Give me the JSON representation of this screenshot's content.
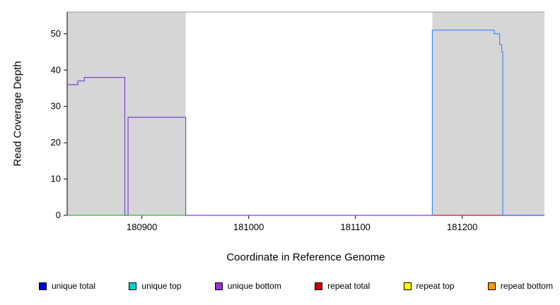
{
  "figure": {
    "xlabel": "Coordinate in Reference Genome",
    "ylabel": "Read Coverage Depth"
  },
  "chart_data": {
    "type": "line",
    "title": "",
    "xlabel": "Coordinate in Reference Genome",
    "ylabel": "Read Coverage Depth",
    "xlim": [
      180830,
      181277
    ],
    "ylim": [
      0,
      56
    ],
    "xticks": [
      180900,
      181000,
      181100,
      181200
    ],
    "yticks": [
      0,
      10,
      20,
      30,
      40,
      50
    ],
    "grid": false,
    "legend_position": "bottom",
    "plot_background": "#ffffff",
    "shaded_region_color": "#d6d6d6",
    "background_regions": [
      {
        "x0": 180830,
        "x1": 180941,
        "color": "#d6d6d6"
      },
      {
        "x0": 181172,
        "x1": 181277,
        "color": "#d6d6d6"
      }
    ],
    "series": [
      {
        "name": "unique bottom",
        "color": "#7a45d8",
        "points": [
          [
            180830,
            36
          ],
          [
            180840,
            36
          ],
          [
            180840,
            37
          ],
          [
            180846,
            37
          ],
          [
            180846,
            38
          ],
          [
            180884,
            38
          ],
          [
            180884,
            0
          ],
          [
            180887,
            0
          ],
          [
            180887,
            27
          ],
          [
            180941,
            27
          ],
          [
            180941,
            0
          ],
          [
            181277,
            0
          ]
        ]
      },
      {
        "name": "green baseline",
        "color": "#33bb33",
        "points": [
          [
            180830,
            0
          ],
          [
            180941,
            0
          ]
        ]
      },
      {
        "name": "red baseline",
        "color": "#e03030",
        "points": [
          [
            181172,
            0
          ],
          [
            181277,
            0
          ]
        ]
      },
      {
        "name": "unique total",
        "color": "#3c8cff",
        "points": [
          [
            181172,
            0
          ],
          [
            181172,
            51
          ],
          [
            181230,
            51
          ],
          [
            181230,
            50
          ],
          [
            181235,
            50
          ],
          [
            181235,
            47
          ],
          [
            181237,
            47
          ],
          [
            181237,
            45
          ],
          [
            181238,
            45
          ],
          [
            181238,
            0
          ],
          [
            181277,
            0
          ]
        ]
      }
    ],
    "legend": [
      {
        "label": "unique total",
        "color": "#0000cc"
      },
      {
        "label": "unique top",
        "color": "#00cccc"
      },
      {
        "label": "unique bottom",
        "color": "#9933cc"
      },
      {
        "label": "repeat total",
        "color": "#cc0000"
      },
      {
        "label": "repeat top",
        "color": "#ffff00"
      },
      {
        "label": "repeat bottom",
        "color": "#ff9900"
      }
    ]
  }
}
